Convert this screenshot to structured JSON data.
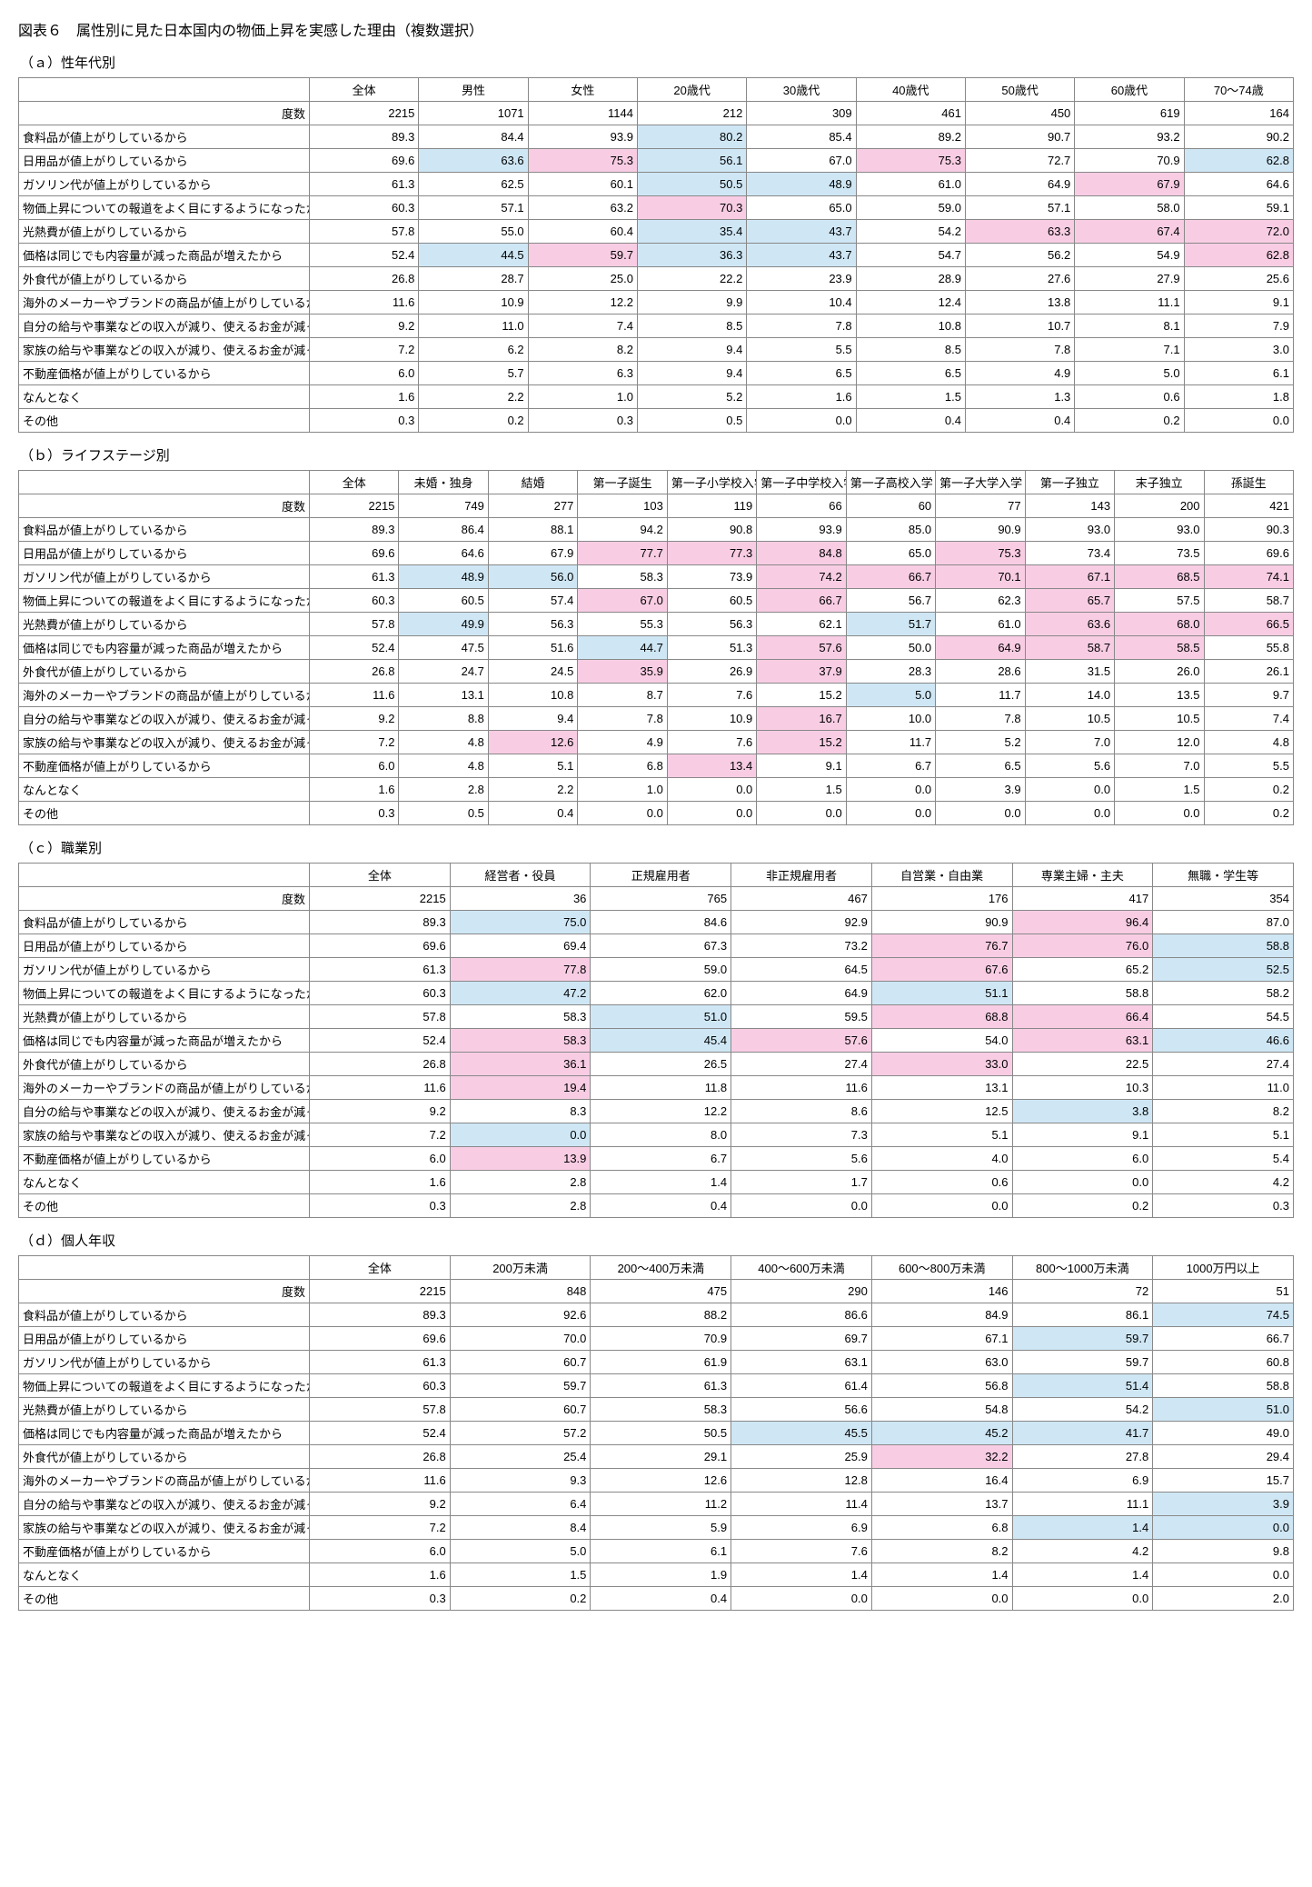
{
  "title": "図表６　属性別に見た日本国内の物価上昇を実感した理由（複数選択）",
  "rowLabels": [
    "度数",
    "食料品が値上がりしているから",
    "日用品が値上がりしているから",
    "ガソリン代が値上がりしているから",
    "物価上昇についての報道をよく目にするようになったから",
    "光熱費が値上がりしているから",
    "価格は同じでも内容量が減った商品が増えたから",
    "外食代が値上がりしているから",
    "海外のメーカーやブランドの商品が値上がりしているから",
    "自分の給与や事業などの収入が減り、使えるお金が減ったから",
    "家族の給与や事業などの収入が減り、使えるお金が減ったから",
    "不動産価格が値上がりしているから",
    "なんとなく",
    "その他"
  ],
  "colors": {
    "blue": "#cfe7f5",
    "pink": "#f8cde4"
  },
  "tables": [
    {
      "heading": "（ａ）性年代別",
      "columns": [
        "全体",
        "男性",
        "女性",
        "20歳代",
        "30歳代",
        "40歳代",
        "50歳代",
        "60歳代",
        "70～74歳"
      ],
      "rows": [
        [
          "2215",
          "1071",
          "1144",
          "212",
          "309",
          "461",
          "450",
          "619",
          "164"
        ],
        [
          "89.3",
          "84.4",
          "93.9",
          [
            "80.2",
            "b"
          ],
          "85.4",
          "89.2",
          "90.7",
          "93.2",
          "90.2"
        ],
        [
          "69.6",
          [
            "63.6",
            "b"
          ],
          [
            "75.3",
            "p"
          ],
          [
            "56.1",
            "b"
          ],
          "67.0",
          [
            "75.3",
            "p"
          ],
          "72.7",
          "70.9",
          [
            "62.8",
            "b"
          ]
        ],
        [
          "61.3",
          "62.5",
          "60.1",
          [
            "50.5",
            "b"
          ],
          [
            "48.9",
            "b"
          ],
          "61.0",
          "64.9",
          [
            "67.9",
            "p"
          ],
          "64.6"
        ],
        [
          "60.3",
          "57.1",
          "63.2",
          [
            "70.3",
            "p"
          ],
          "65.0",
          "59.0",
          "57.1",
          "58.0",
          "59.1"
        ],
        [
          "57.8",
          "55.0",
          "60.4",
          [
            "35.4",
            "b"
          ],
          [
            "43.7",
            "b"
          ],
          "54.2",
          [
            "63.3",
            "p"
          ],
          [
            "67.4",
            "p"
          ],
          [
            "72.0",
            "p"
          ]
        ],
        [
          "52.4",
          [
            "44.5",
            "b"
          ],
          [
            "59.7",
            "p"
          ],
          [
            "36.3",
            "b"
          ],
          [
            "43.7",
            "b"
          ],
          "54.7",
          "56.2",
          "54.9",
          [
            "62.8",
            "p"
          ]
        ],
        [
          "26.8",
          "28.7",
          "25.0",
          "22.2",
          "23.9",
          "28.9",
          "27.6",
          "27.9",
          "25.6"
        ],
        [
          "11.6",
          "10.9",
          "12.2",
          "9.9",
          "10.4",
          "12.4",
          "13.8",
          "11.1",
          "9.1"
        ],
        [
          "9.2",
          "11.0",
          "7.4",
          "8.5",
          "7.8",
          "10.8",
          "10.7",
          "8.1",
          "7.9"
        ],
        [
          "7.2",
          "6.2",
          "8.2",
          "9.4",
          "5.5",
          "8.5",
          "7.8",
          "7.1",
          "3.0"
        ],
        [
          "6.0",
          "5.7",
          "6.3",
          "9.4",
          "6.5",
          "6.5",
          "4.9",
          "5.0",
          "6.1"
        ],
        [
          "1.6",
          "2.2",
          "1.0",
          "5.2",
          "1.6",
          "1.5",
          "1.3",
          "0.6",
          "1.8"
        ],
        [
          "0.3",
          "0.2",
          "0.3",
          "0.5",
          "0.0",
          "0.4",
          "0.4",
          "0.2",
          "0.0"
        ]
      ]
    },
    {
      "heading": "（ｂ）ライフステージ別",
      "columns": [
        "全体",
        "未婚・独身",
        "結婚",
        "第一子誕生",
        "第一子小学校入学",
        "第一子中学校入学",
        "第一子高校入学",
        "第一子大学入学",
        "第一子独立",
        "末子独立",
        "孫誕生"
      ],
      "rows": [
        [
          "2215",
          "749",
          "277",
          "103",
          "119",
          "66",
          "60",
          "77",
          "143",
          "200",
          "421"
        ],
        [
          "89.3",
          "86.4",
          "88.1",
          "94.2",
          "90.8",
          "93.9",
          "85.0",
          "90.9",
          "93.0",
          "93.0",
          "90.3"
        ],
        [
          "69.6",
          "64.6",
          "67.9",
          [
            "77.7",
            "p"
          ],
          [
            "77.3",
            "p"
          ],
          [
            "84.8",
            "p"
          ],
          "65.0",
          [
            "75.3",
            "p"
          ],
          "73.4",
          "73.5",
          "69.6"
        ],
        [
          "61.3",
          [
            "48.9",
            "b"
          ],
          [
            "56.0",
            "b"
          ],
          "58.3",
          "73.9",
          [
            "74.2",
            "p"
          ],
          [
            "66.7",
            "p"
          ],
          [
            "70.1",
            "p"
          ],
          [
            "67.1",
            "p"
          ],
          [
            "68.5",
            "p"
          ],
          [
            "74.1",
            "p"
          ]
        ],
        [
          "60.3",
          "60.5",
          "57.4",
          [
            "67.0",
            "p"
          ],
          "60.5",
          [
            "66.7",
            "p"
          ],
          "56.7",
          "62.3",
          [
            "65.7",
            "p"
          ],
          "57.5",
          "58.7"
        ],
        [
          "57.8",
          [
            "49.9",
            "b"
          ],
          "56.3",
          "55.3",
          "56.3",
          "62.1",
          [
            "51.7",
            "b"
          ],
          "61.0",
          [
            "63.6",
            "p"
          ],
          [
            "68.0",
            "p"
          ],
          [
            "66.5",
            "p"
          ]
        ],
        [
          "52.4",
          "47.5",
          "51.6",
          [
            "44.7",
            "b"
          ],
          "51.3",
          [
            "57.6",
            "p"
          ],
          "50.0",
          [
            "64.9",
            "p"
          ],
          [
            "58.7",
            "p"
          ],
          [
            "58.5",
            "p"
          ],
          "55.8"
        ],
        [
          "26.8",
          "24.7",
          "24.5",
          [
            "35.9",
            "p"
          ],
          "26.9",
          [
            "37.9",
            "p"
          ],
          "28.3",
          "28.6",
          "31.5",
          "26.0",
          "26.1"
        ],
        [
          "11.6",
          "13.1",
          "10.8",
          "8.7",
          "7.6",
          "15.2",
          [
            "5.0",
            "b"
          ],
          "11.7",
          "14.0",
          "13.5",
          "9.7"
        ],
        [
          "9.2",
          "8.8",
          "9.4",
          "7.8",
          "10.9",
          [
            "16.7",
            "p"
          ],
          "10.0",
          "7.8",
          "10.5",
          "10.5",
          "7.4"
        ],
        [
          "7.2",
          "4.8",
          [
            "12.6",
            "p"
          ],
          "4.9",
          "7.6",
          [
            "15.2",
            "p"
          ],
          "11.7",
          "5.2",
          "7.0",
          "12.0",
          "4.8"
        ],
        [
          "6.0",
          "4.8",
          "5.1",
          "6.8",
          [
            "13.4",
            "p"
          ],
          "9.1",
          "6.7",
          "6.5",
          "5.6",
          "7.0",
          "5.5"
        ],
        [
          "1.6",
          "2.8",
          "2.2",
          "1.0",
          "0.0",
          "1.5",
          "0.0",
          "3.9",
          "0.0",
          "1.5",
          "0.2"
        ],
        [
          "0.3",
          "0.5",
          "0.4",
          "0.0",
          "0.0",
          "0.0",
          "0.0",
          "0.0",
          "0.0",
          "0.0",
          "0.2"
        ]
      ]
    },
    {
      "heading": "（ｃ）職業別",
      "columns": [
        "全体",
        "経営者・役員",
        "正規雇用者",
        "非正規雇用者",
        "自営業・自由業",
        "専業主婦・主夫",
        "無職・学生等"
      ],
      "rows": [
        [
          "2215",
          "36",
          "765",
          "467",
          "176",
          "417",
          "354"
        ],
        [
          "89.3",
          [
            "75.0",
            "b"
          ],
          "84.6",
          "92.9",
          "90.9",
          [
            "96.4",
            "p"
          ],
          "87.0"
        ],
        [
          "69.6",
          "69.4",
          "67.3",
          "73.2",
          [
            "76.7",
            "p"
          ],
          [
            "76.0",
            "p"
          ],
          [
            "58.8",
            "b"
          ]
        ],
        [
          "61.3",
          [
            "77.8",
            "p"
          ],
          "59.0",
          "64.5",
          [
            "67.6",
            "p"
          ],
          "65.2",
          [
            "52.5",
            "b"
          ]
        ],
        [
          "60.3",
          [
            "47.2",
            "b"
          ],
          "62.0",
          "64.9",
          [
            "51.1",
            "b"
          ],
          "58.8",
          "58.2"
        ],
        [
          "57.8",
          "58.3",
          [
            "51.0",
            "b"
          ],
          "59.5",
          [
            "68.8",
            "p"
          ],
          [
            "66.4",
            "p"
          ],
          "54.5"
        ],
        [
          "52.4",
          [
            "58.3",
            "p"
          ],
          [
            "45.4",
            "b"
          ],
          [
            "57.6",
            "p"
          ],
          "54.0",
          [
            "63.1",
            "p"
          ],
          [
            "46.6",
            "b"
          ]
        ],
        [
          "26.8",
          [
            "36.1",
            "p"
          ],
          "26.5",
          "27.4",
          [
            "33.0",
            "p"
          ],
          "22.5",
          "27.4"
        ],
        [
          "11.6",
          [
            "19.4",
            "p"
          ],
          "11.8",
          "11.6",
          "13.1",
          "10.3",
          "11.0"
        ],
        [
          "9.2",
          "8.3",
          "12.2",
          "8.6",
          "12.5",
          [
            "3.8",
            "b"
          ],
          "8.2"
        ],
        [
          "7.2",
          [
            "0.0",
            "b"
          ],
          "8.0",
          "7.3",
          "5.1",
          "9.1",
          "5.1"
        ],
        [
          "6.0",
          [
            "13.9",
            "p"
          ],
          "6.7",
          "5.6",
          "4.0",
          "6.0",
          "5.4"
        ],
        [
          "1.6",
          "2.8",
          "1.4",
          "1.7",
          "0.6",
          "0.0",
          "4.2"
        ],
        [
          "0.3",
          "2.8",
          "0.4",
          "0.0",
          "0.0",
          "0.2",
          "0.3"
        ]
      ]
    },
    {
      "heading": "（ｄ）個人年収",
      "columns": [
        "全体",
        "200万未満",
        "200～400万未満",
        "400～600万未満",
        "600～800万未満",
        "800～1000万未満",
        "1000万円以上"
      ],
      "rows": [
        [
          "2215",
          "848",
          "475",
          "290",
          "146",
          "72",
          "51"
        ],
        [
          "89.3",
          "92.6",
          "88.2",
          "86.6",
          "84.9",
          "86.1",
          [
            "74.5",
            "b"
          ]
        ],
        [
          "69.6",
          "70.0",
          "70.9",
          "69.7",
          "67.1",
          [
            "59.7",
            "b"
          ],
          "66.7"
        ],
        [
          "61.3",
          "60.7",
          "61.9",
          "63.1",
          "63.0",
          "59.7",
          "60.8"
        ],
        [
          "60.3",
          "59.7",
          "61.3",
          "61.4",
          "56.8",
          [
            "51.4",
            "b"
          ],
          "58.8"
        ],
        [
          "57.8",
          "60.7",
          "58.3",
          "56.6",
          "54.8",
          "54.2",
          [
            "51.0",
            "b"
          ]
        ],
        [
          "52.4",
          "57.2",
          "50.5",
          [
            "45.5",
            "b"
          ],
          [
            "45.2",
            "b"
          ],
          [
            "41.7",
            "b"
          ],
          "49.0"
        ],
        [
          "26.8",
          "25.4",
          "29.1",
          "25.9",
          [
            "32.2",
            "p"
          ],
          "27.8",
          "29.4"
        ],
        [
          "11.6",
          "9.3",
          "12.6",
          "12.8",
          "16.4",
          "6.9",
          "15.7"
        ],
        [
          "9.2",
          "6.4",
          "11.2",
          "11.4",
          "13.7",
          "11.1",
          [
            "3.9",
            "b"
          ]
        ],
        [
          "7.2",
          "8.4",
          "5.9",
          "6.9",
          "6.8",
          [
            "1.4",
            "b"
          ],
          [
            "0.0",
            "b"
          ]
        ],
        [
          "6.0",
          "5.0",
          "6.1",
          "7.6",
          "8.2",
          "4.2",
          "9.8"
        ],
        [
          "1.6",
          "1.5",
          "1.9",
          "1.4",
          "1.4",
          "1.4",
          "0.0"
        ],
        [
          "0.3",
          "0.2",
          "0.4",
          "0.0",
          "0.0",
          "0.0",
          "2.0"
        ]
      ]
    }
  ]
}
